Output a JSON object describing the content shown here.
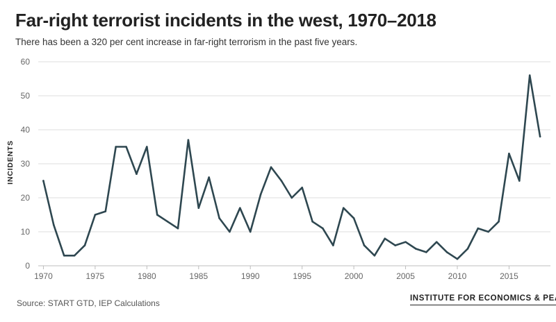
{
  "header": {
    "title": "Far-right terrorist incidents in the west, 1970–2018",
    "subtitle": "There has been a 320 per cent increase in far-right terrorism in the past five years."
  },
  "footer": {
    "source": "Source: START GTD, IEP Calculations",
    "brand": "INSTITUTE FOR ECONOMICS & PEACE"
  },
  "colors": {
    "line": "#2e4750",
    "grid": "#dcdcdc",
    "axis": "#bdbdbd",
    "tick_text": "#666666"
  },
  "chart_data": {
    "type": "line",
    "title": "Far-right terrorist incidents in the west, 1970–2018",
    "xlabel": "",
    "ylabel": "INCIDENTS",
    "xlim": [
      1969.5,
      2019
    ],
    "ylim": [
      0,
      60
    ],
    "xticks": [
      1970,
      1975,
      1980,
      1985,
      1990,
      1995,
      2000,
      2005,
      2010,
      2015
    ],
    "yticks": [
      0,
      10,
      20,
      30,
      40,
      50,
      60
    ],
    "grid": true,
    "series": [
      {
        "name": "Incidents",
        "x": [
          1970,
          1971,
          1972,
          1973,
          1974,
          1975,
          1976,
          1977,
          1978,
          1979,
          1980,
          1981,
          1982,
          1983,
          1984,
          1985,
          1986,
          1987,
          1988,
          1989,
          1990,
          1991,
          1992,
          1993,
          1994,
          1995,
          1996,
          1997,
          1998,
          1999,
          2000,
          2001,
          2002,
          2003,
          2004,
          2005,
          2006,
          2007,
          2008,
          2009,
          2010,
          2011,
          2012,
          2013,
          2014,
          2015,
          2016,
          2017,
          2018
        ],
        "values": [
          25,
          12,
          3,
          3,
          6,
          15,
          16,
          35,
          35,
          27,
          35,
          15,
          13,
          11,
          37,
          17,
          26,
          14,
          10,
          17,
          10,
          21,
          29,
          25,
          20,
          23,
          13,
          11,
          6,
          17,
          14,
          6,
          3,
          8,
          6,
          7,
          5,
          4,
          7,
          4,
          2,
          5,
          11,
          10,
          13,
          33,
          25,
          56,
          38
        ]
      }
    ]
  }
}
